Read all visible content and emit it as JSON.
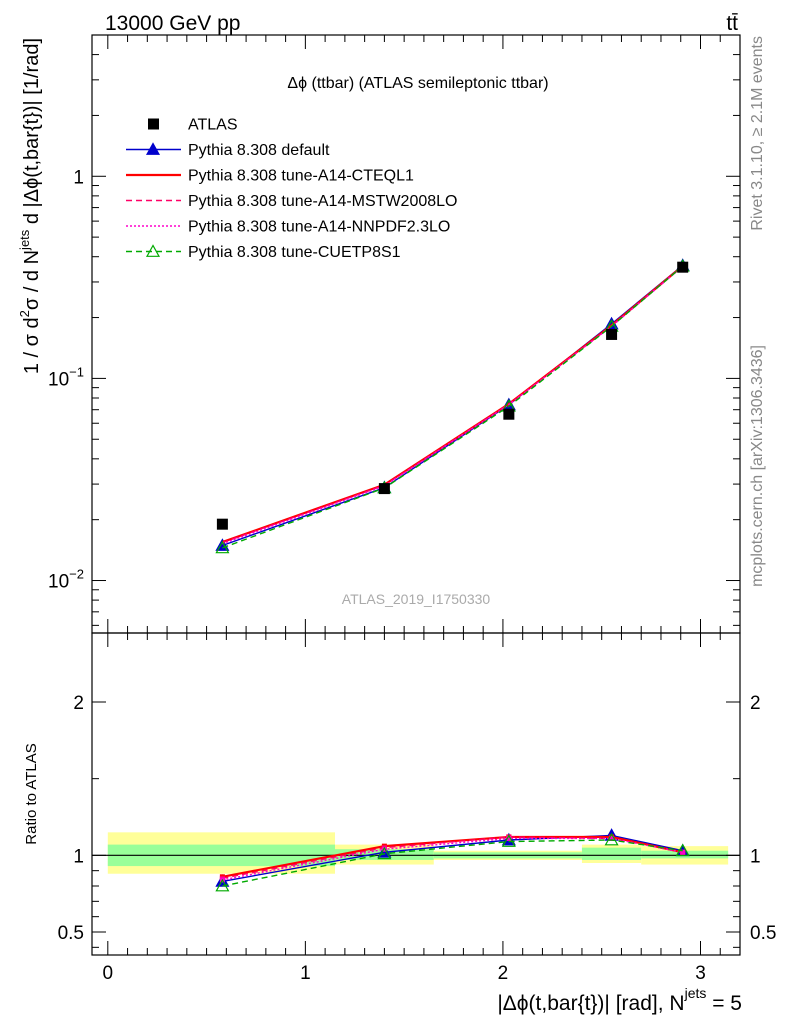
{
  "header": {
    "energy_label": "13000 GeV pp",
    "process_label": "tt̄"
  },
  "side_text": {
    "rivet": "Rivet 3.1.10, ≥ 2.1M events",
    "source": "mcplots.cern.ch [arXiv:1306.3436]"
  },
  "chart_data": [
    {
      "type": "line",
      "title": "Δϕ (ttbar) (ATLAS semileptonic ttbar)",
      "ylabel_parts": [
        "1 / σ d",
        "2",
        "σ / d N",
        "jets",
        " d |Δϕ(t,bar{t})| [1/rad]"
      ],
      "yscale": "log",
      "ylim": [
        0.0055,
        5.0
      ],
      "xlim": [
        -0.08,
        3.2
      ],
      "y_ticks": [
        {
          "value": 0.01,
          "base": "10",
          "exp": "−2"
        },
        {
          "value": 0.1,
          "base": "10",
          "exp": "−1"
        },
        {
          "value": 1,
          "base": "1",
          "exp": ""
        }
      ],
      "watermark": "ATLAS_2019_I1750330",
      "legend_position": "top-left",
      "data": {
        "name": "ATLAS",
        "x": [
          0.58,
          1.4,
          2.03,
          2.55,
          2.91
        ],
        "y": [
          0.019,
          0.0285,
          0.0665,
          0.165,
          0.355
        ]
      },
      "series": [
        {
          "name": "Pythia 8.308 default",
          "color": "#0000cc",
          "style": "solid",
          "marker": "triangle-filled",
          "x": [
            0.58,
            1.4,
            2.03,
            2.55,
            2.91
          ],
          "y": [
            0.0149,
            0.0288,
            0.074,
            0.186,
            0.362
          ]
        },
        {
          "name": "Pythia 8.308 tune-A14-CTEQL1",
          "color": "#ff0000",
          "style": "solid",
          "marker": "none",
          "x": [
            0.58,
            1.4,
            2.03,
            2.55,
            2.91
          ],
          "y": [
            0.0155,
            0.0298,
            0.0748,
            0.183,
            0.36
          ]
        },
        {
          "name": "Pythia 8.308 tune-A14-MSTW2008LO",
          "color": "#ff0066",
          "style": "dashed",
          "marker": "none",
          "x": [
            0.58,
            1.4,
            2.03,
            2.55,
            2.91
          ],
          "y": [
            0.0154,
            0.0296,
            0.0745,
            0.182,
            0.359
          ]
        },
        {
          "name": "Pythia 8.308 tune-A14-NNPDF2.3LO",
          "color": "#ff00cc",
          "style": "dotted",
          "marker": "none",
          "x": [
            0.58,
            1.4,
            2.03,
            2.55,
            2.91
          ],
          "y": [
            0.0152,
            0.0294,
            0.0742,
            0.181,
            0.358
          ]
        },
        {
          "name": "Pythia 8.308 tune-CUETP8S1",
          "color": "#00aa00",
          "style": "dashed",
          "marker": "triangle-open",
          "x": [
            0.58,
            1.4,
            2.03,
            2.55,
            2.91
          ],
          "y": [
            0.0145,
            0.0287,
            0.0728,
            0.181,
            0.359
          ]
        }
      ]
    },
    {
      "type": "line",
      "ylabel": "Ratio to ATLAS",
      "xlabel_parts": [
        "|Δϕ(t,bar{t})| [rad], N",
        "jets",
        " = 5"
      ],
      "xlim": [
        -0.08,
        3.2
      ],
      "ylim": [
        0.35,
        2.45
      ],
      "x_ticks": [
        "0",
        "1",
        "2",
        "3"
      ],
      "y_ticks": [
        {
          "value": 0.5,
          "label": "0.5"
        },
        {
          "value": 1,
          "label": "1"
        },
        {
          "value": 2,
          "label": "2"
        }
      ],
      "bands": [
        {
          "x0": 0.0,
          "x1": 1.15,
          "stat": [
            0.93,
            1.07
          ],
          "total": [
            0.88,
            1.15
          ]
        },
        {
          "x0": 1.15,
          "x1": 1.65,
          "stat": [
            0.97,
            1.04
          ],
          "total": [
            0.94,
            1.07
          ]
        },
        {
          "x0": 1.65,
          "x1": 2.4,
          "stat": [
            0.98,
            1.02
          ],
          "total": [
            0.97,
            1.03
          ]
        },
        {
          "x0": 2.4,
          "x1": 2.7,
          "stat": [
            0.97,
            1.05
          ],
          "total": [
            0.95,
            1.07
          ]
        },
        {
          "x0": 2.7,
          "x1": 3.14,
          "stat": [
            0.98,
            1.03
          ],
          "total": [
            0.94,
            1.06
          ]
        }
      ],
      "series": [
        {
          "name": "Pythia 8.308 default",
          "x": [
            0.58,
            1.4,
            2.03,
            2.55,
            2.91
          ],
          "y": [
            0.83,
            1.02,
            1.1,
            1.13,
            1.03
          ]
        },
        {
          "name": "Pythia 8.308 tune-A14-CTEQL1",
          "x": [
            0.58,
            1.4,
            2.03,
            2.55,
            2.91
          ],
          "y": [
            0.86,
            1.06,
            1.12,
            1.12,
            1.02
          ]
        },
        {
          "name": "Pythia 8.308 tune-A14-MSTW2008LO",
          "x": [
            0.58,
            1.4,
            2.03,
            2.55,
            2.91
          ],
          "y": [
            0.85,
            1.05,
            1.12,
            1.11,
            1.02
          ]
        },
        {
          "name": "Pythia 8.308 tune-A14-NNPDF2.3LO",
          "x": [
            0.58,
            1.4,
            2.03,
            2.55,
            2.91
          ],
          "y": [
            0.84,
            1.04,
            1.11,
            1.11,
            1.02
          ]
        },
        {
          "name": "Pythia 8.308 tune-CUETP8S1",
          "x": [
            0.58,
            1.4,
            2.03,
            2.55,
            2.91
          ],
          "y": [
            0.8,
            1.01,
            1.09,
            1.1,
            1.03
          ]
        }
      ]
    }
  ]
}
